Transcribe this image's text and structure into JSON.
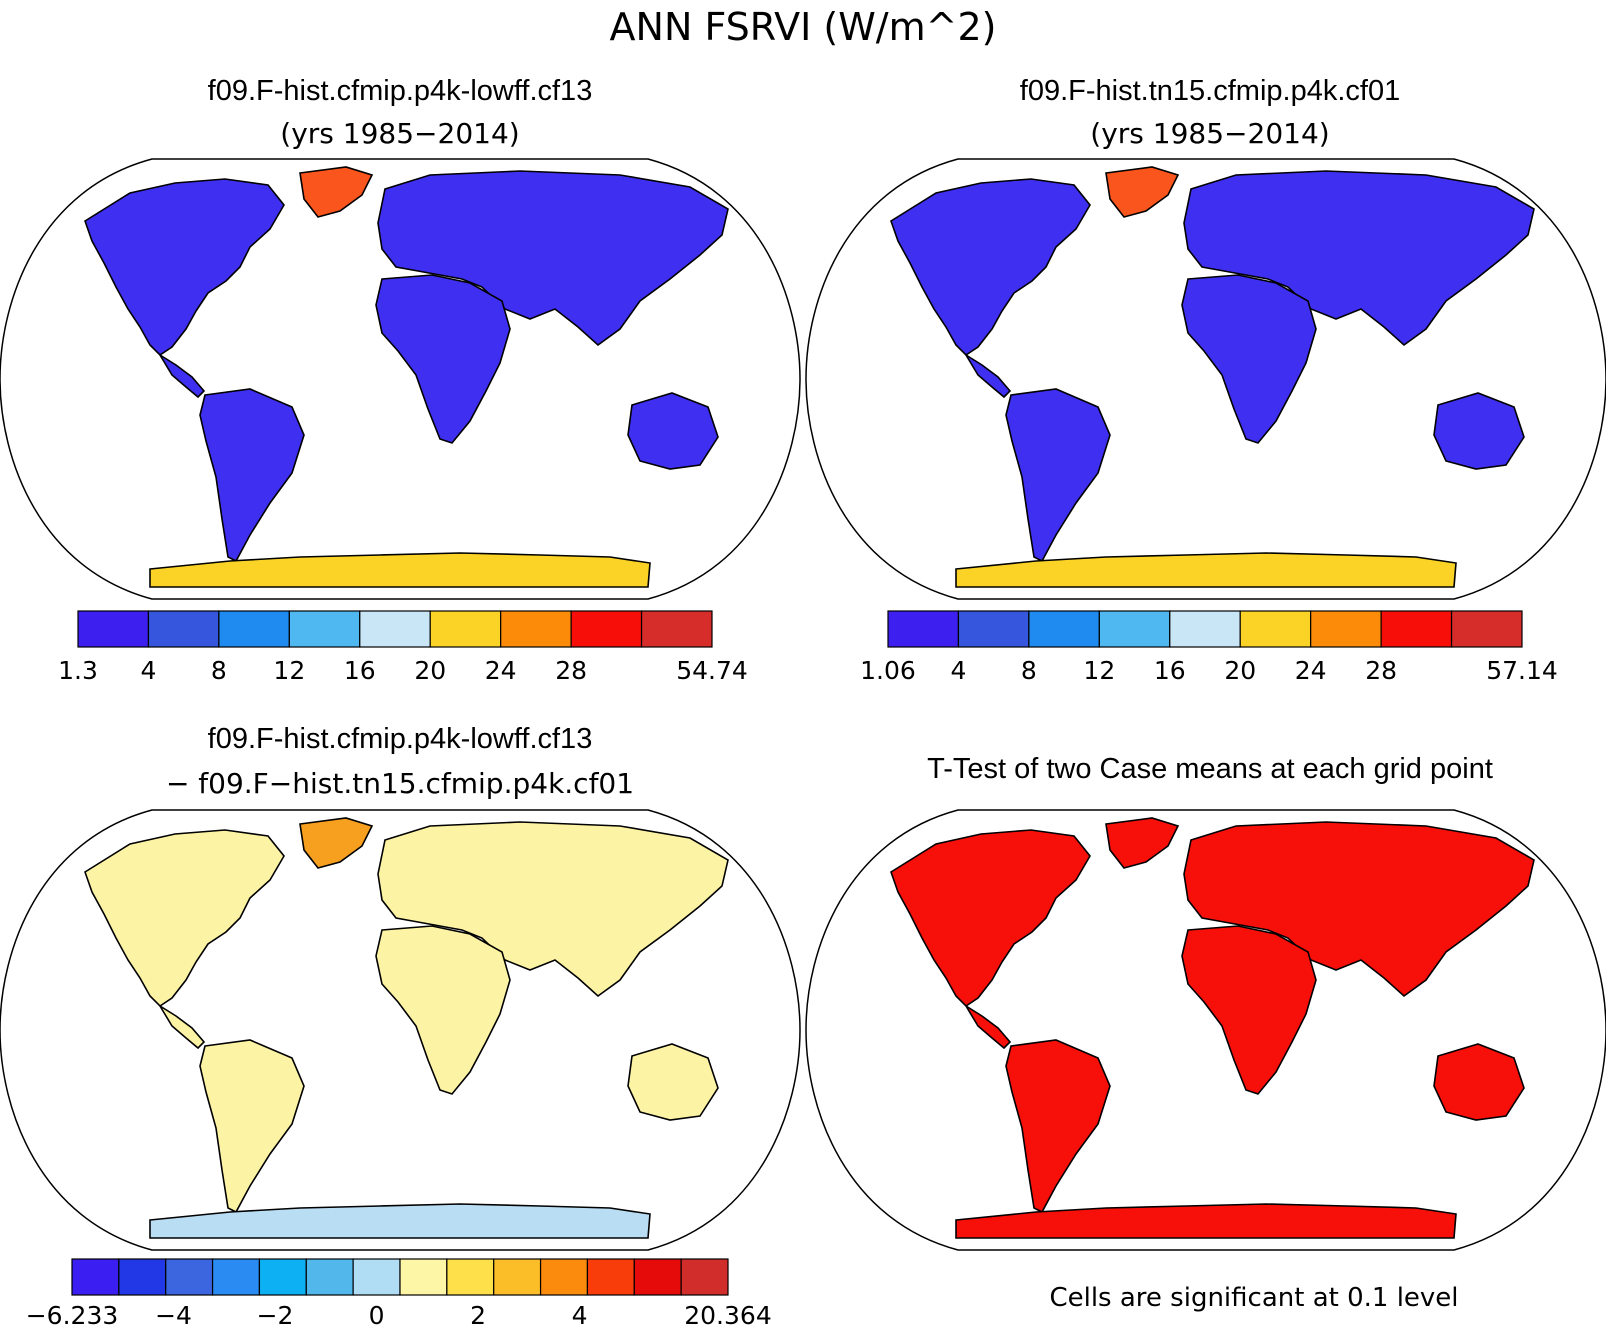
{
  "figure": {
    "title": "ANN FSRVI (W/m^2)",
    "footer": "Cells are significant at 0.1 level"
  },
  "panels": [
    {
      "title_line1": "f09.F-hist.cfmip.p4k-lowff.cf13",
      "title_line2": "(yrs 1985−2014)",
      "colorbar": {
        "labels": [
          "1.3",
          "4",
          "8",
          "12",
          "16",
          "20",
          "24",
          "28",
          "54.74"
        ],
        "colors": [
          "#3d1ff0",
          "#3556dd",
          "#1f8af0",
          "#50b8f0",
          "#c8e6f6",
          "#fbd327",
          "#fb8b08",
          "#f70e08",
          "#d62c2a"
        ]
      },
      "map": {
        "land_color": "#3f2ff0",
        "antarctic_color": "#fbd327",
        "arctic_color": "#f9551c"
      }
    },
    {
      "title_line1": "f09.F-hist.tn15.cfmip.p4k.cf01",
      "title_line2": "(yrs 1985−2014)",
      "colorbar": {
        "labels": [
          "1.06",
          "4",
          "8",
          "12",
          "16",
          "20",
          "24",
          "28",
          "57.14"
        ],
        "colors": [
          "#3d1ff0",
          "#3556dd",
          "#1f8af0",
          "#50b8f0",
          "#c8e6f6",
          "#fbd327",
          "#fb8b08",
          "#f70e08",
          "#d62c2a"
        ]
      },
      "map": {
        "land_color": "#3f2ff0",
        "antarctic_color": "#fbd327",
        "arctic_color": "#f9551c"
      }
    },
    {
      "title_line1": "f09.F-hist.cfmip.p4k-lowff.cf13",
      "title_line2": "− f09.F−hist.tn15.cfmip.p4k.cf01",
      "colorbar": {
        "labels": [
          "−6.233",
          "−4",
          "−2",
          "0",
          "2",
          "4",
          "20.364"
        ],
        "colors": [
          "#3a1ef2",
          "#2238e6",
          "#3c66df",
          "#2a8cf2",
          "#0db0f3",
          "#52b8ec",
          "#b0dcf4",
          "#fdf6a6",
          "#fde04a",
          "#fbbd28",
          "#fa8b0d",
          "#f93d0a",
          "#e40b0a",
          "#d12d2b"
        ]
      },
      "map": {
        "land_color": "#fdf3a4",
        "antarctic_color": "#b9ddf3",
        "arctic_color": "#f7a020"
      }
    },
    {
      "title_line1": "T-Test of two Case means at each grid point",
      "map": {
        "land_color": "#f70f0a"
      }
    }
  ]
}
